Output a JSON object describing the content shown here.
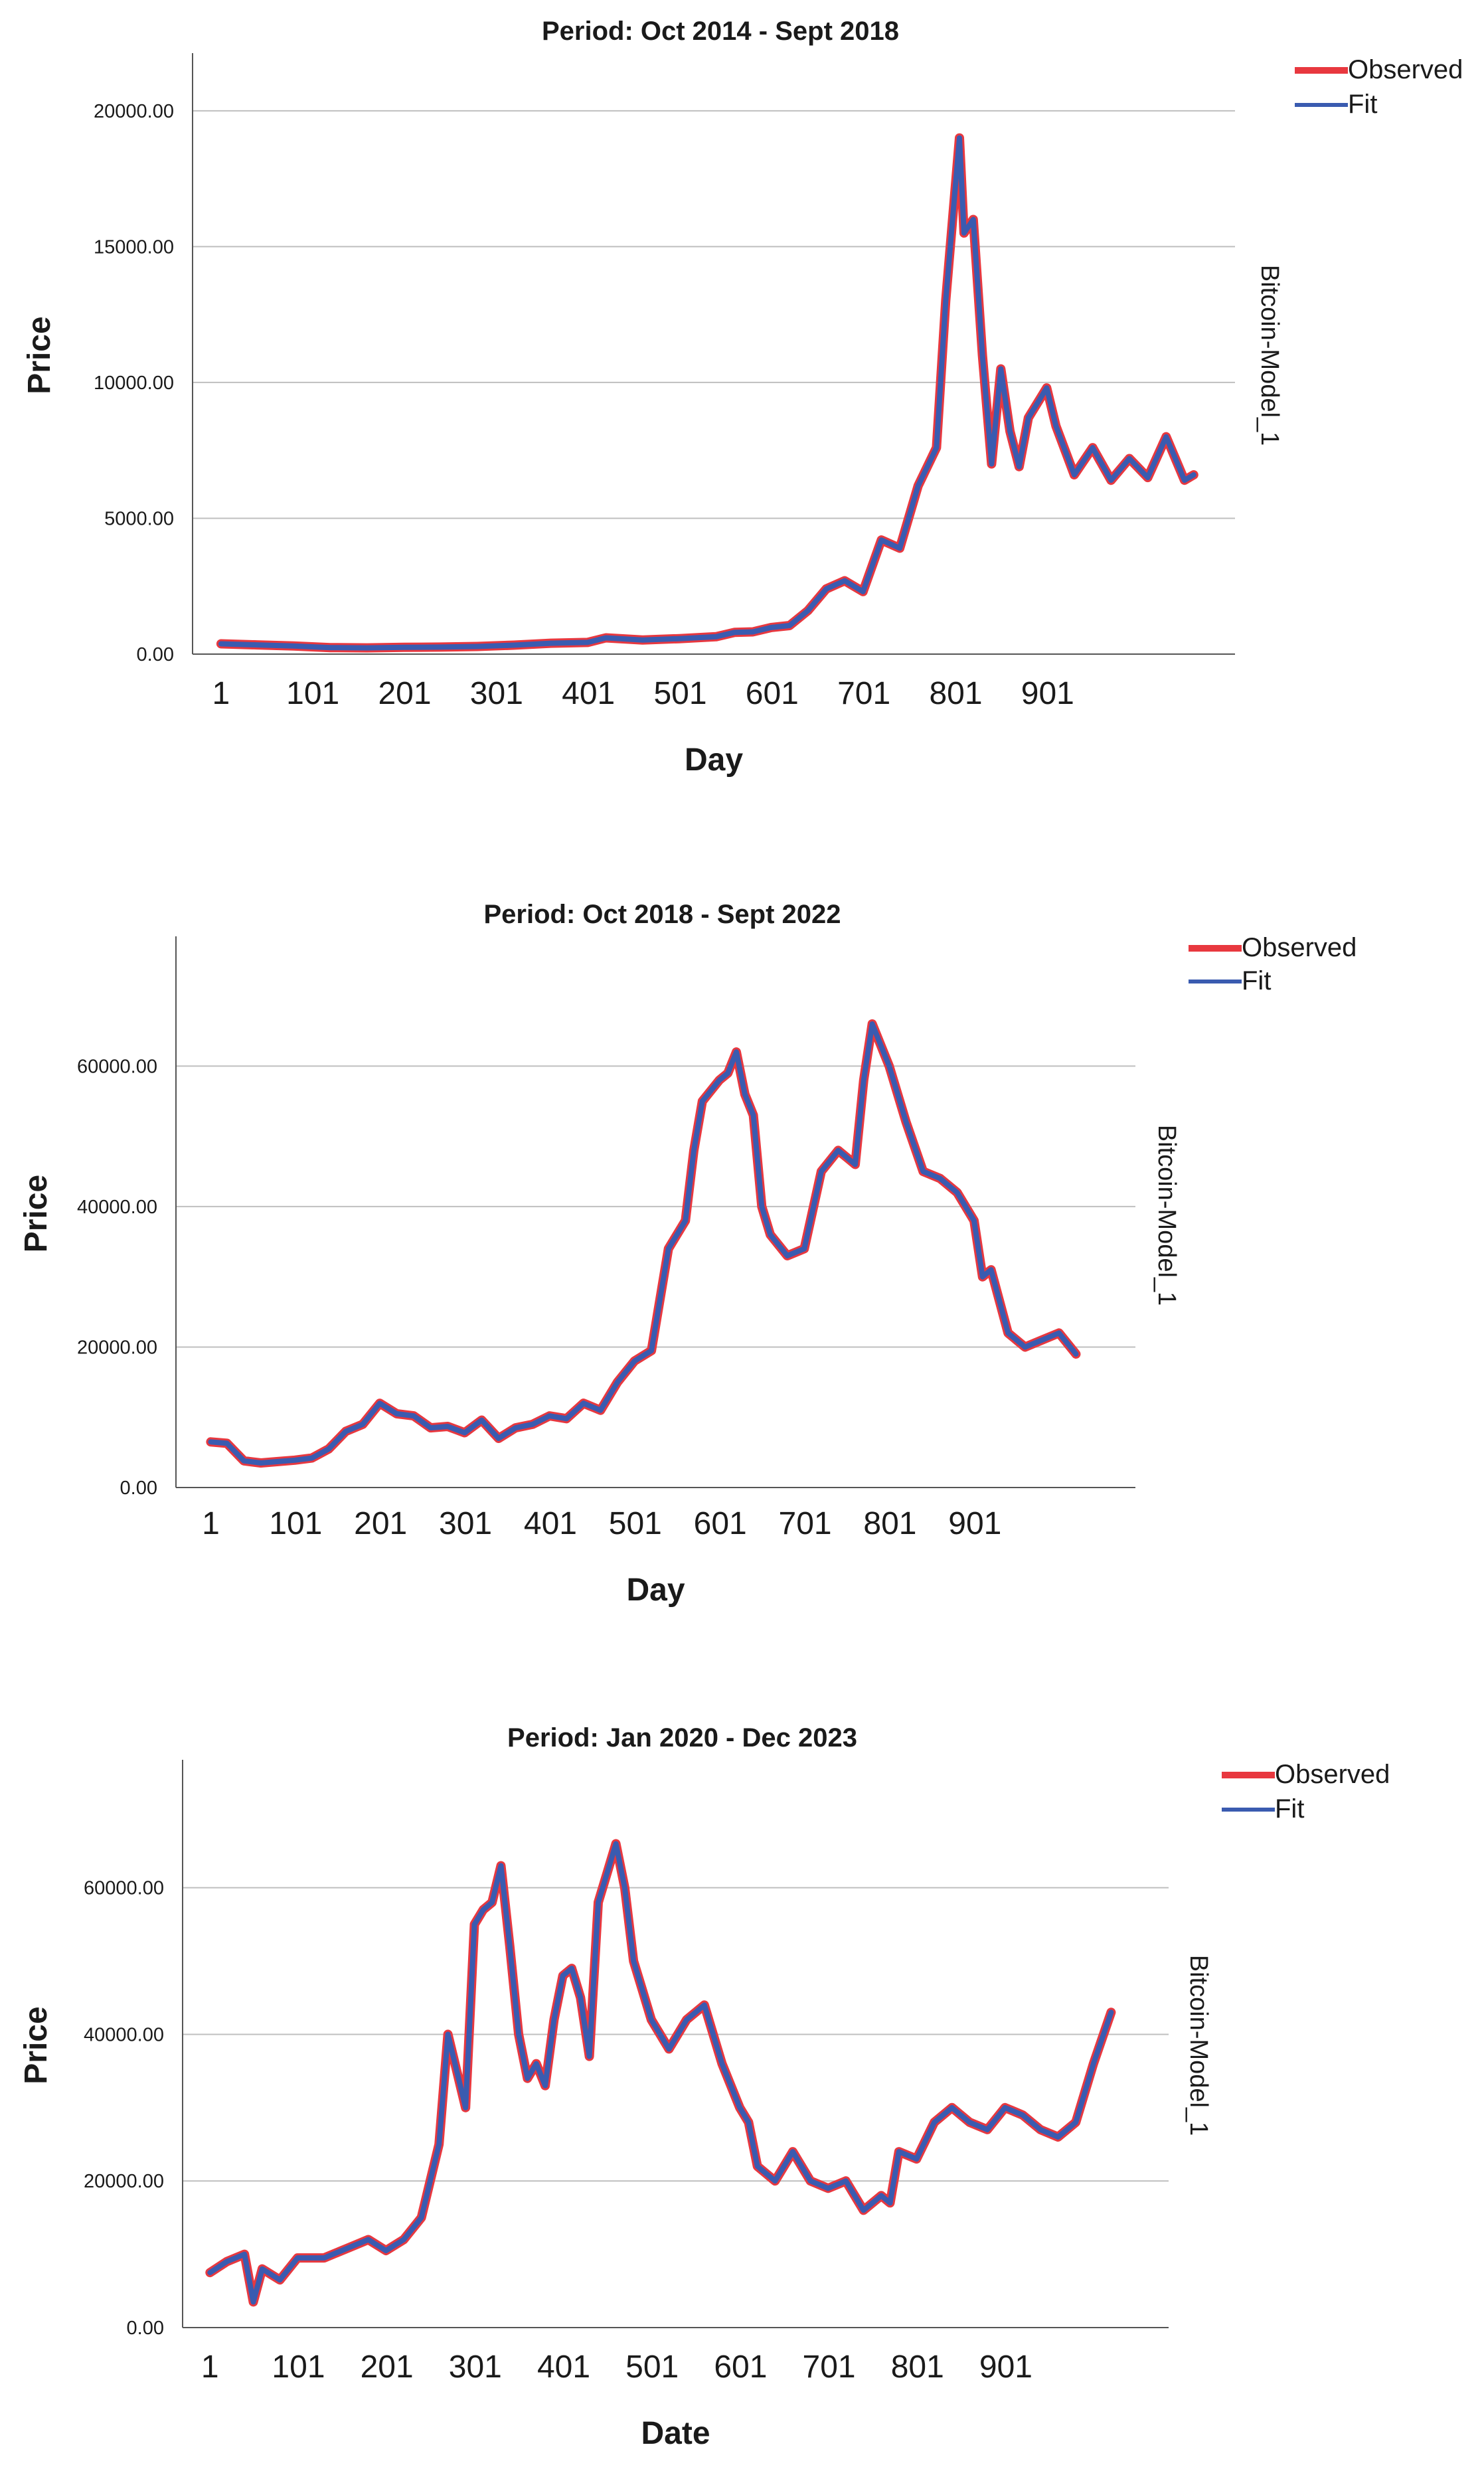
{
  "chart_data": [
    {
      "type": "line",
      "title": "Period: Oct 2014 - Sept 2018",
      "xlabel": "Day",
      "ylabel": "Price",
      "side_label": "Bitcoin-Model_1",
      "xlim": [
        -30,
        1105
      ],
      "ylim": [
        0,
        22000
      ],
      "y_ticks": [
        0,
        5000,
        10000,
        15000,
        20000
      ],
      "y_tick_labels": [
        "0.00",
        "5000.00",
        "10000.00",
        "15000.00",
        "20000.00"
      ],
      "x_ticks": [
        1,
        101,
        201,
        301,
        401,
        501,
        601,
        701,
        801,
        901
      ],
      "x_tick_labels": [
        "1",
        "101",
        "201",
        "301",
        "401",
        "501",
        "601",
        "701",
        "801",
        "901"
      ],
      "grid": "horizontal",
      "legend_position": "top-right",
      "colors": {
        "observed": "#e8383f",
        "fit": "#3a5bb0"
      },
      "series": [
        {
          "name": "Observed",
          "x": [
            1,
            40,
            80,
            120,
            160,
            200,
            240,
            280,
            320,
            360,
            400,
            420,
            460,
            500,
            540,
            560,
            580,
            600,
            620,
            640,
            660,
            680,
            700,
            720,
            740,
            760,
            780,
            790,
            800,
            805,
            810,
            820,
            830,
            840,
            850,
            860,
            870,
            880,
            900,
            910,
            930,
            950,
            970,
            990,
            1010,
            1030,
            1050,
            1060
          ],
          "y": [
            380,
            340,
            300,
            240,
            230,
            250,
            260,
            280,
            330,
            400,
            430,
            600,
            520,
            570,
            640,
            800,
            820,
            980,
            1050,
            1600,
            2400,
            2700,
            2300,
            4200,
            3900,
            6200,
            7600,
            13000,
            17000,
            19000,
            15500,
            16000,
            11000,
            7000,
            10500,
            8200,
            6900,
            8700,
            9800,
            8400,
            6600,
            7600,
            6400,
            7200,
            6500,
            8000,
            6400,
            6600
          ]
        },
        {
          "name": "Fit",
          "x": [
            1,
            40,
            80,
            120,
            160,
            200,
            240,
            280,
            320,
            360,
            400,
            420,
            460,
            500,
            540,
            560,
            580,
            600,
            620,
            640,
            660,
            680,
            700,
            720,
            740,
            760,
            780,
            790,
            800,
            805,
            810,
            820,
            830,
            840,
            850,
            860,
            870,
            880,
            900,
            910,
            930,
            950,
            970,
            990,
            1010,
            1030,
            1050,
            1060
          ],
          "y": [
            380,
            340,
            300,
            240,
            230,
            250,
            260,
            280,
            330,
            400,
            430,
            600,
            520,
            570,
            640,
            800,
            820,
            980,
            1050,
            1600,
            2400,
            2700,
            2300,
            4200,
            3900,
            6200,
            7600,
            13000,
            17000,
            19000,
            15500,
            16000,
            11000,
            7000,
            10500,
            8200,
            6900,
            8700,
            9800,
            8400,
            6600,
            7600,
            6400,
            7200,
            6500,
            8000,
            6400,
            6600
          ]
        }
      ]
    },
    {
      "type": "line",
      "title": "Period: Oct 2018 - Sept 2022",
      "xlabel": "Day",
      "ylabel": "Price",
      "side_label": "Bitcoin-Model_1",
      "xlim": [
        -40,
        1090
      ],
      "ylim": [
        0,
        78000
      ],
      "y_ticks": [
        0,
        20000,
        40000,
        60000
      ],
      "y_tick_labels": [
        "0.00",
        "20000.00",
        "40000.00",
        "60000.00"
      ],
      "x_ticks": [
        1,
        101,
        201,
        301,
        401,
        501,
        601,
        701,
        801,
        901
      ],
      "x_tick_labels": [
        "1",
        "101",
        "201",
        "301",
        "401",
        "501",
        "601",
        "701",
        "801",
        "901"
      ],
      "grid": "horizontal",
      "legend_position": "top-right",
      "colors": {
        "observed": "#e8383f",
        "fit": "#3a5bb0"
      },
      "series": [
        {
          "name": "Observed",
          "x": [
            1,
            20,
            40,
            60,
            80,
            100,
            120,
            140,
            160,
            180,
            200,
            220,
            240,
            260,
            280,
            300,
            320,
            340,
            360,
            380,
            400,
            420,
            440,
            460,
            480,
            500,
            520,
            540,
            560,
            570,
            580,
            600,
            610,
            620,
            630,
            640,
            650,
            660,
            680,
            700,
            720,
            740,
            760,
            770,
            780,
            800,
            820,
            840,
            860,
            880,
            900,
            910,
            920,
            940,
            960,
            980,
            1000,
            1020
          ],
          "y": [
            6500,
            6300,
            3800,
            3500,
            3700,
            3900,
            4200,
            5500,
            8000,
            9000,
            12000,
            10500,
            10200,
            8500,
            8700,
            7800,
            9600,
            7000,
            8500,
            9000,
            10200,
            9800,
            12000,
            11000,
            15000,
            18000,
            19500,
            34000,
            38000,
            48000,
            55000,
            58000,
            59000,
            62000,
            56000,
            53000,
            40000,
            36000,
            33000,
            34000,
            45000,
            48000,
            46000,
            58000,
            66000,
            60000,
            52000,
            45000,
            44000,
            42000,
            38000,
            30000,
            31000,
            22000,
            20000,
            21000,
            22000,
            19000
          ]
        },
        {
          "name": "Fit",
          "x": [
            1,
            20,
            40,
            60,
            80,
            100,
            120,
            140,
            160,
            180,
            200,
            220,
            240,
            260,
            280,
            300,
            320,
            340,
            360,
            380,
            400,
            420,
            440,
            460,
            480,
            500,
            520,
            540,
            560,
            570,
            580,
            600,
            610,
            620,
            630,
            640,
            650,
            660,
            680,
            700,
            720,
            740,
            760,
            770,
            780,
            800,
            820,
            840,
            860,
            880,
            900,
            910,
            920,
            940,
            960,
            980,
            1000,
            1020
          ],
          "y": [
            6500,
            6300,
            3800,
            3500,
            3700,
            3900,
            4200,
            5500,
            8000,
            9000,
            12000,
            10500,
            10200,
            8500,
            8700,
            7800,
            9600,
            7000,
            8500,
            9000,
            10200,
            9800,
            12000,
            11000,
            15000,
            18000,
            19500,
            34000,
            38000,
            48000,
            55000,
            58000,
            59000,
            62000,
            56000,
            53000,
            40000,
            36000,
            33000,
            34000,
            45000,
            48000,
            46000,
            58000,
            66000,
            60000,
            52000,
            45000,
            44000,
            42000,
            38000,
            30000,
            31000,
            22000,
            20000,
            21000,
            22000,
            19000
          ]
        }
      ]
    },
    {
      "type": "line",
      "title": "Period: Jan 2020 - Dec 2023",
      "xlabel": "Date",
      "ylabel": "Price",
      "side_label": "Bitcoin-Model_1",
      "xlim": [
        -30,
        1085
      ],
      "ylim": [
        0,
        77000
      ],
      "y_ticks": [
        0,
        20000,
        40000,
        60000
      ],
      "y_tick_labels": [
        "0.00",
        "20000.00",
        "40000.00",
        "60000.00"
      ],
      "x_ticks": [
        1,
        101,
        201,
        301,
        401,
        501,
        601,
        701,
        801,
        901
      ],
      "x_tick_labels": [
        "1",
        "101",
        "201",
        "301",
        "401",
        "501",
        "601",
        "701",
        "801",
        "901"
      ],
      "grid": "horizontal",
      "legend_position": "top-right",
      "colors": {
        "observed": "#e8383f",
        "fit": "#3a5bb0"
      },
      "series": [
        {
          "name": "Observed",
          "x": [
            1,
            20,
            40,
            50,
            60,
            80,
            100,
            130,
            160,
            180,
            200,
            220,
            240,
            250,
            260,
            270,
            280,
            290,
            300,
            310,
            320,
            330,
            340,
            350,
            360,
            370,
            380,
            390,
            400,
            410,
            420,
            430,
            440,
            450,
            460,
            470,
            480,
            490,
            500,
            520,
            540,
            560,
            580,
            600,
            610,
            620,
            640,
            660,
            680,
            700,
            720,
            740,
            760,
            770,
            780,
            800,
            820,
            840,
            860,
            880,
            900,
            920,
            940,
            960,
            980,
            1000,
            1020
          ],
          "y": [
            7500,
            9000,
            10000,
            3500,
            8000,
            6500,
            9500,
            9500,
            11000,
            12000,
            10500,
            12000,
            15000,
            20000,
            25000,
            40000,
            35000,
            30000,
            55000,
            57000,
            58000,
            63000,
            52000,
            40000,
            34000,
            36000,
            33000,
            42000,
            48000,
            49000,
            45000,
            37000,
            58000,
            62000,
            66000,
            60000,
            50000,
            46000,
            42000,
            38000,
            42000,
            44000,
            36000,
            30000,
            28000,
            22000,
            20000,
            24000,
            20000,
            19000,
            20000,
            16000,
            18000,
            17000,
            24000,
            23000,
            28000,
            30000,
            28000,
            27000,
            30000,
            29000,
            27000,
            26000,
            28000,
            36000,
            43000
          ]
        },
        {
          "name": "Fit",
          "x": [
            1,
            20,
            40,
            50,
            60,
            80,
            100,
            130,
            160,
            180,
            200,
            220,
            240,
            250,
            260,
            270,
            280,
            290,
            300,
            310,
            320,
            330,
            340,
            350,
            360,
            370,
            380,
            390,
            400,
            410,
            420,
            430,
            440,
            450,
            460,
            470,
            480,
            490,
            500,
            520,
            540,
            560,
            580,
            600,
            610,
            620,
            640,
            660,
            680,
            700,
            720,
            740,
            760,
            770,
            780,
            800,
            820,
            840,
            860,
            880,
            900,
            920,
            940,
            960,
            980,
            1000,
            1020
          ],
          "y": [
            7500,
            9000,
            10000,
            3500,
            8000,
            6500,
            9500,
            9500,
            11000,
            12000,
            10500,
            12000,
            15000,
            20000,
            25000,
            40000,
            35000,
            30000,
            55000,
            57000,
            58000,
            63000,
            52000,
            40000,
            34000,
            36000,
            33000,
            42000,
            48000,
            49000,
            45000,
            37000,
            58000,
            62000,
            66000,
            60000,
            50000,
            46000,
            42000,
            38000,
            42000,
            44000,
            36000,
            30000,
            28000,
            22000,
            20000,
            24000,
            20000,
            19000,
            20000,
            16000,
            18000,
            17000,
            24000,
            23000,
            28000,
            30000,
            28000,
            27000,
            30000,
            29000,
            27000,
            26000,
            28000,
            36000,
            43000
          ]
        }
      ]
    }
  ]
}
